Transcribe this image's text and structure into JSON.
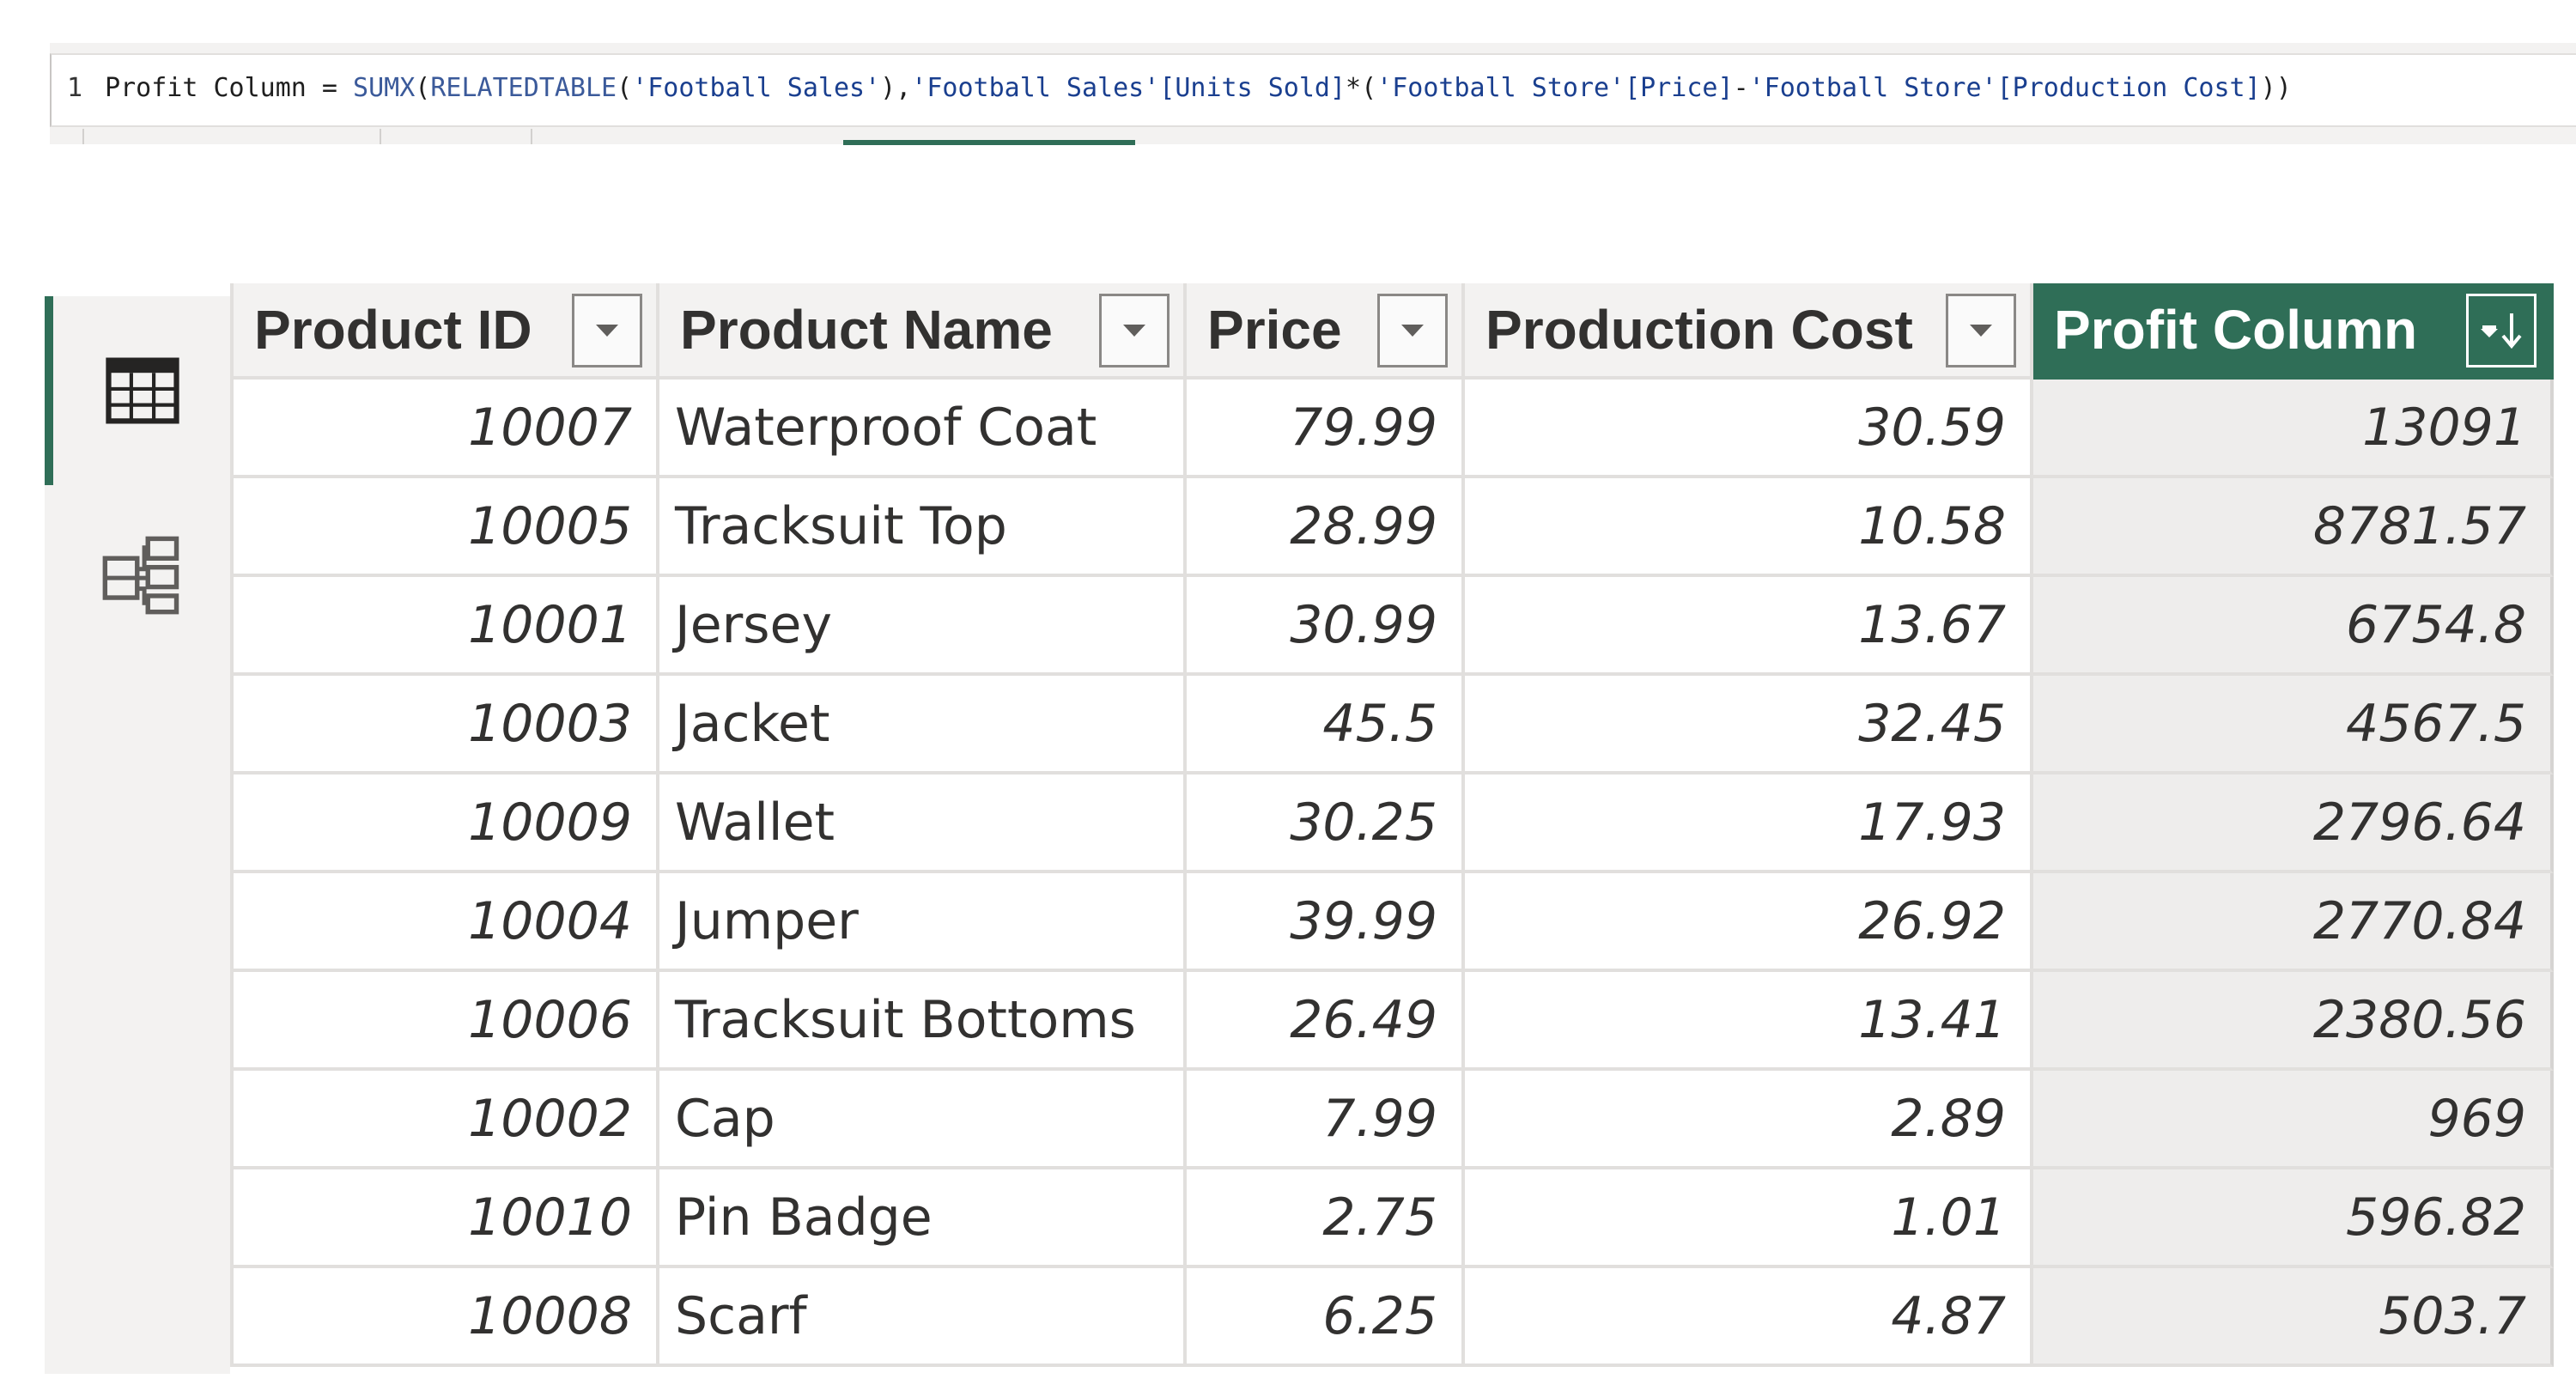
{
  "formula": {
    "line_number": "1",
    "segments": [
      {
        "text": "Profit Column = ",
        "kind": "plain"
      },
      {
        "text": "SUMX",
        "kind": "func"
      },
      {
        "text": "(",
        "kind": "plain"
      },
      {
        "text": "RELATEDTABLE",
        "kind": "func"
      },
      {
        "text": "(",
        "kind": "plain"
      },
      {
        "text": "'Football Sales'",
        "kind": "str"
      },
      {
        "text": "),",
        "kind": "plain"
      },
      {
        "text": "'Football Sales'[Units Sold]",
        "kind": "ref"
      },
      {
        "text": "*(",
        "kind": "plain"
      },
      {
        "text": "'Football Store'[Price]",
        "kind": "ref"
      },
      {
        "text": "-",
        "kind": "plain"
      },
      {
        "text": "'Football Store'[Production Cost]",
        "kind": "ref"
      },
      {
        "text": "))",
        "kind": "plain"
      }
    ]
  },
  "rail": {
    "table_view_icon": "table-icon",
    "model_view_icon": "model-icon"
  },
  "table": {
    "columns": [
      "Product ID",
      "Product Name",
      "Price",
      "Production Cost",
      "Profit Column"
    ],
    "sorted_column": "Profit Column",
    "sort_direction": "descending",
    "rows": [
      [
        "10007",
        "Waterproof Coat",
        "79.99",
        "30.59",
        "13091"
      ],
      [
        "10005",
        "Tracksuit Top",
        "28.99",
        "10.58",
        "8781.57"
      ],
      [
        "10001",
        "Jersey",
        "30.99",
        "13.67",
        "6754.8"
      ],
      [
        "10003",
        "Jacket",
        "45.5",
        "32.45",
        "4567.5"
      ],
      [
        "10009",
        "Wallet",
        "30.25",
        "17.93",
        "2796.64"
      ],
      [
        "10004",
        "Jumper",
        "39.99",
        "26.92",
        "2770.84"
      ],
      [
        "10006",
        "Tracksuit Bottoms",
        "26.49",
        "13.41",
        "2380.56"
      ],
      [
        "10002",
        "Cap",
        "7.99",
        "2.89",
        "969"
      ],
      [
        "10010",
        "Pin Badge",
        "2.75",
        "1.01",
        "596.82"
      ],
      [
        "10008",
        "Scarf",
        "6.25",
        "4.87",
        "503.7"
      ]
    ]
  },
  "colors": {
    "accent": "#2f6e57",
    "header_bg": "#f3f2f1",
    "grid_line": "#e1dfdd",
    "selected_column_bg": "#eeedec"
  }
}
